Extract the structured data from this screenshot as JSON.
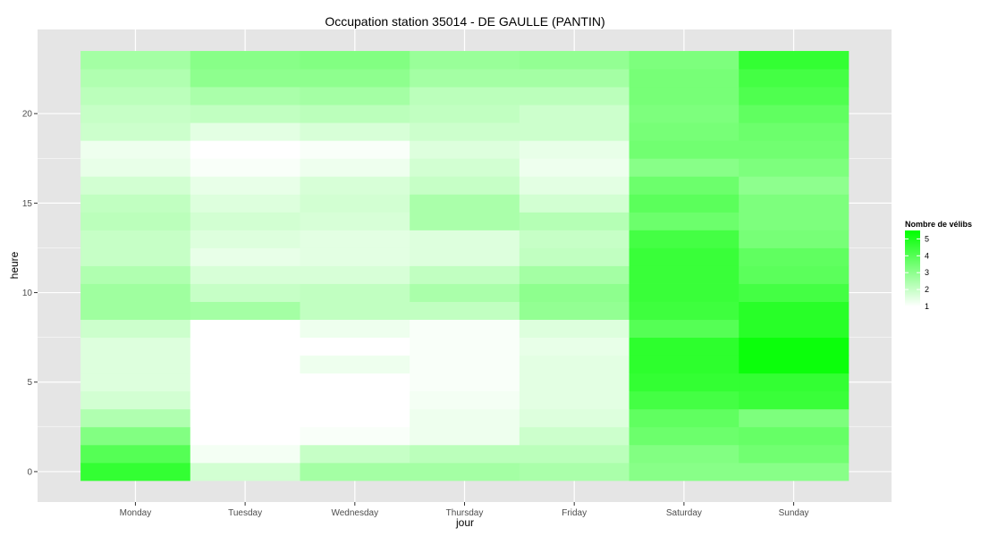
{
  "chart_data": {
    "type": "heatmap",
    "title": "Occupation station 35014 - DE GAULLE (PANTIN)",
    "xlabel": "jour",
    "ylabel": "heure",
    "categories": [
      "Monday",
      "Tuesday",
      "Wednesday",
      "Thursday",
      "Friday",
      "Saturday",
      "Sunday"
    ],
    "y": [
      0,
      1,
      2,
      3,
      4,
      5,
      6,
      7,
      8,
      9,
      10,
      11,
      12,
      13,
      14,
      15,
      16,
      17,
      18,
      19,
      20,
      21,
      22,
      23
    ],
    "y_ticks": [
      0,
      5,
      10,
      15,
      20
    ],
    "x_range": [
      0.5,
      7.5
    ],
    "y_range": [
      -0.5,
      23.5
    ],
    "values": [
      [
        4.6,
        1.8,
        2.6,
        2.6,
        2.5,
        3.1,
        3.1
      ],
      [
        4.0,
        1.2,
        2.0,
        2.2,
        2.2,
        3.2,
        3.5
      ],
      [
        3.2,
        1.0,
        1.1,
        1.3,
        1.9,
        3.6,
        3.7
      ],
      [
        2.4,
        1.0,
        1.0,
        1.3,
        1.6,
        3.8,
        3.3
      ],
      [
        1.8,
        1.0,
        1.0,
        1.2,
        1.5,
        4.3,
        4.5
      ],
      [
        1.6,
        1.0,
        1.0,
        1.1,
        1.5,
        4.6,
        4.6
      ],
      [
        1.6,
        1.0,
        1.3,
        1.1,
        1.5,
        4.7,
        5.3
      ],
      [
        1.6,
        1.0,
        1.0,
        1.1,
        1.4,
        4.7,
        5.3
      ],
      [
        1.9,
        1.0,
        1.3,
        1.1,
        1.6,
        4.0,
        4.8
      ],
      [
        2.7,
        2.6,
        2.1,
        2.1,
        2.9,
        4.4,
        4.8
      ],
      [
        2.7,
        2.0,
        2.1,
        2.5,
        3.0,
        4.5,
        4.3
      ],
      [
        2.4,
        1.7,
        1.7,
        2.1,
        2.6,
        4.5,
        3.9
      ],
      [
        2.0,
        1.4,
        1.5,
        1.6,
        2.1,
        4.5,
        3.8
      ],
      [
        2.0,
        1.6,
        1.5,
        1.6,
        2.0,
        4.3,
        3.4
      ],
      [
        2.2,
        1.8,
        1.7,
        2.5,
        2.3,
        3.6,
        3.3
      ],
      [
        2.1,
        1.6,
        1.8,
        2.5,
        1.8,
        3.9,
        3.3
      ],
      [
        1.8,
        1.4,
        1.7,
        2.0,
        1.5,
        3.6,
        3.0
      ],
      [
        1.4,
        1.1,
        1.3,
        1.8,
        1.3,
        3.1,
        3.3
      ],
      [
        1.3,
        1.0,
        1.1,
        1.6,
        1.4,
        3.5,
        3.5
      ],
      [
        1.9,
        1.5,
        1.7,
        1.9,
        1.9,
        3.4,
        3.6
      ],
      [
        2.0,
        2.1,
        2.2,
        2.1,
        1.9,
        3.3,
        3.8
      ],
      [
        2.2,
        2.5,
        2.6,
        2.2,
        2.2,
        3.4,
        4.1
      ],
      [
        2.4,
        3.0,
        3.0,
        2.6,
        2.6,
        3.4,
        4.3
      ],
      [
        2.6,
        3.1,
        3.2,
        2.8,
        2.9,
        3.3,
        4.6
      ]
    ],
    "grid": true,
    "legend": {
      "title": "Nombre de vélibs",
      "labels": [
        "1",
        "2",
        "3",
        "4",
        "5"
      ],
      "breaks": [
        1,
        2,
        3,
        4,
        5
      ],
      "placement": "right"
    },
    "scale": {
      "low_color": "#ffffff",
      "high_color": "#00ff00",
      "min": 1,
      "max": 5.5
    },
    "panel_background": "#e5e5e5",
    "grid_color": "#ffffff"
  }
}
